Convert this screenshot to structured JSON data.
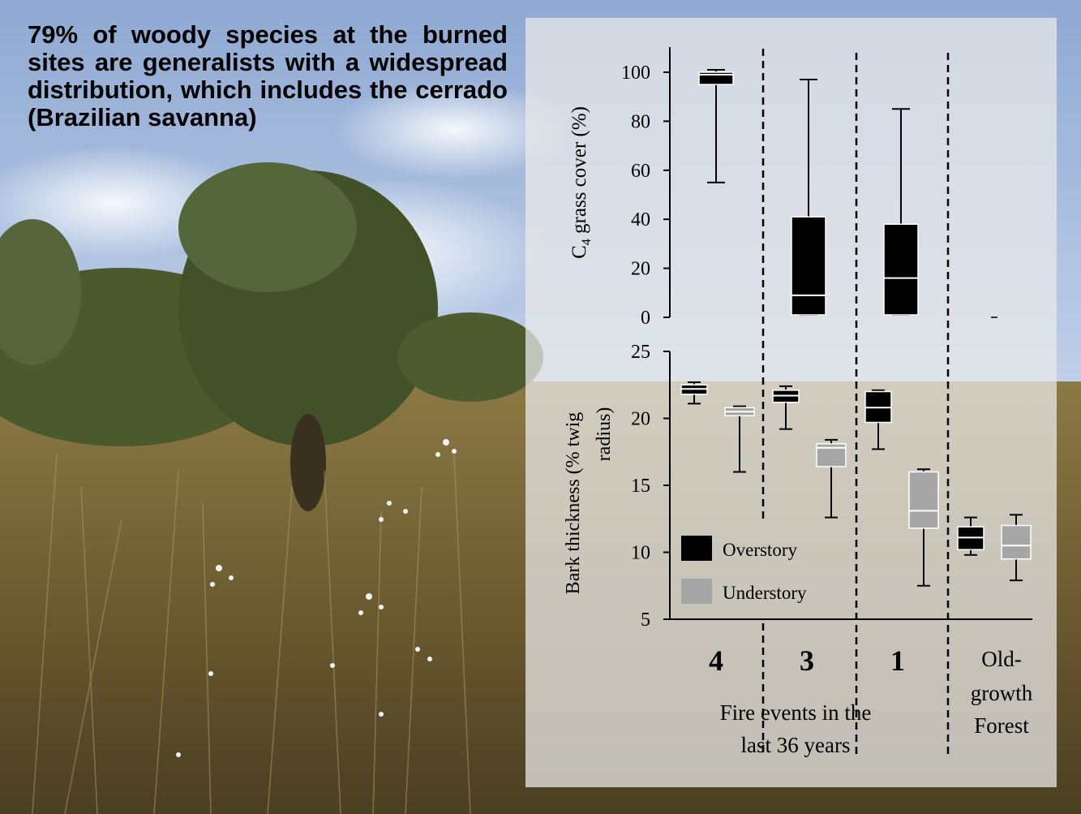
{
  "headline": "79% of woody species at the burned sites are generalists with a widespread distribution, which includes the cerrado (Brazilian savanna)",
  "chart_data": {
    "type": "box",
    "groups": [
      {
        "label": "4"
      },
      {
        "label": "3"
      },
      {
        "label": "1"
      },
      {
        "label": "Old-growth Forest",
        "lines": [
          "Old-",
          "growth",
          "Forest"
        ]
      }
    ],
    "xlabel_lines": [
      "Fire events in the",
      "last 36 years"
    ],
    "top_panel": {
      "ylabel_main": "C",
      "ylabel_sub": "4",
      "ylabel_rest": " grass  cover  (%)",
      "ylim": [
        0,
        100
      ],
      "yticks": [
        "0",
        "20",
        "40",
        "60",
        "80",
        "100"
      ],
      "boxes": [
        {
          "group": "4",
          "min": 55,
          "q1": 95,
          "median": 99,
          "q3": 100,
          "max": 101
        },
        {
          "group": "3",
          "min": 1,
          "q1": 1,
          "median": 9,
          "q3": 41,
          "max": 97
        },
        {
          "group": "1",
          "min": 1,
          "q1": 1,
          "median": 16,
          "q3": 38,
          "max": 85
        },
        {
          "group": "Old-growth Forest",
          "min": 0,
          "q1": 0,
          "median": 0,
          "q3": 0,
          "max": 0
        }
      ]
    },
    "bottom_panel": {
      "ylabel_lines": [
        "Bark  thickness (% twig",
        "radius)"
      ],
      "ylim": [
        5,
        25
      ],
      "yticks": [
        "5",
        "10",
        "15",
        "20",
        "25"
      ],
      "series": [
        {
          "name": "Overstory",
          "color": "#000000",
          "boxes": [
            {
              "group": "4",
              "min": 21.1,
              "q1": 21.8,
              "median": 22.2,
              "q3": 22.5,
              "max": 22.7
            },
            {
              "group": "3",
              "min": 19.2,
              "q1": 21.2,
              "median": 21.7,
              "q3": 22.1,
              "max": 22.4
            },
            {
              "group": "1",
              "min": 17.7,
              "q1": 19.7,
              "median": 20.8,
              "q3": 22.0,
              "max": 22.1
            },
            {
              "group": "Old-growth Forest",
              "min": 9.8,
              "q1": 10.2,
              "median": 11.1,
              "q3": 11.9,
              "max": 12.6
            }
          ]
        },
        {
          "name": "Understory",
          "color": "#a6a6a6",
          "boxes": [
            {
              "group": "4",
              "min": 16.0,
              "q1": 20.2,
              "median": 20.5,
              "q3": 20.8,
              "max": 20.9
            },
            {
              "group": "3",
              "min": 12.6,
              "q1": 16.4,
              "median": 17.8,
              "q3": 18.1,
              "max": 18.4
            },
            {
              "group": "1",
              "min": 7.5,
              "q1": 11.8,
              "median": 13.1,
              "q3": 16.0,
              "max": 16.2
            },
            {
              "group": "Old-growth Forest",
              "min": 7.9,
              "q1": 9.5,
              "median": 10.5,
              "q3": 12.0,
              "max": 12.8
            }
          ]
        }
      ]
    },
    "legend": {
      "position": "bottom-left",
      "entries": [
        "Overstory",
        "Understory"
      ]
    }
  }
}
